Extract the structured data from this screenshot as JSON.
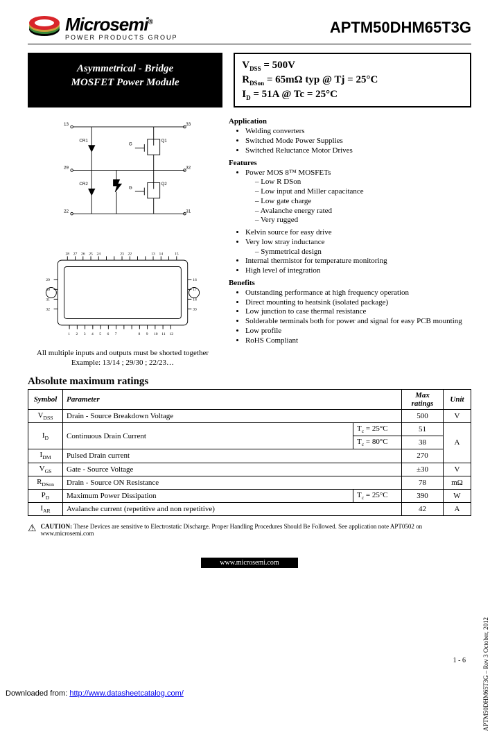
{
  "header": {
    "brand": "Microsemi",
    "tagline": "POWER PRODUCTS GROUP",
    "part_number": "APTM50DHM65T3G"
  },
  "title_badge": {
    "line1": "Asymmetrical - Bridge",
    "line2": "MOSFET Power Module"
  },
  "specs": {
    "line1_pre": "V",
    "line1_sub": "DSS",
    "line1_post": " = 500V",
    "line2_pre": "R",
    "line2_sub": "DSon",
    "line2_post": " = 65mΩ typ @ Tj = 25°C",
    "line3_pre": "I",
    "line3_sub": "D",
    "line3_post": " = 51A @ Tc = 25°C"
  },
  "diagram_note": {
    "line1": "All multiple inputs and outputs must be shorted together",
    "line2": "Example: 13/14 ; 29/30 ; 22/23…"
  },
  "application": {
    "title": "Application",
    "items": [
      "Welding converters",
      "Switched Mode Power Supplies",
      "Switched Reluctance Motor Drives"
    ]
  },
  "features": {
    "title": "Features",
    "lead": "Power MOS 8™ MOSFETs",
    "sub": [
      "Low R DSon",
      "Low input and Miller capacitance",
      "Low gate charge",
      "Avalanche energy rated",
      "Very rugged"
    ],
    "rest": [
      "Kelvin source for easy drive",
      "Very low stray inductance"
    ],
    "rest_sub": [
      "Symmetrical design"
    ],
    "rest2": [
      "Internal thermistor for temperature monitoring",
      "High level of integration"
    ]
  },
  "benefits": {
    "title": "Benefits",
    "items": [
      "Outstanding performance at high frequency operation",
      "Direct mounting to heatsink (isolated package)",
      "Low junction to case thermal resistance",
      "Solderable terminals both for power and signal for easy PCB mounting",
      "Low profile",
      "RoHS Compliant"
    ]
  },
  "ratings": {
    "title": "Absolute maximum ratings",
    "headers": [
      "Symbol",
      "Parameter",
      "Max ratings",
      "Unit"
    ],
    "rows": [
      {
        "sym": "V_DSS",
        "param": "Drain - Source Breakdown Voltage",
        "cond": "",
        "val": "500",
        "unit": "V",
        "rowspan": 1,
        "colspan": 2
      },
      {
        "sym": "I_D",
        "param": "Continuous Drain Current",
        "cond": "Tc = 25°C",
        "val": "51",
        "unit": "A",
        "merge": "start"
      },
      {
        "sym": "",
        "param": "",
        "cond": "Tc = 80°C",
        "val": "38",
        "unit": "",
        "merge": "mid"
      },
      {
        "sym": "I_DM",
        "param": "Pulsed Drain current",
        "cond": "",
        "val": "270",
        "unit": "",
        "merge": "end"
      },
      {
        "sym": "V_GS",
        "param": "Gate - Source Voltage",
        "cond": "",
        "val": "±30",
        "unit": "V",
        "colspan": 2
      },
      {
        "sym": "R_DSon",
        "param": "Drain - Source ON Resistance",
        "cond": "",
        "val": "78",
        "unit": "mΩ",
        "colspan": 2
      },
      {
        "sym": "P_D",
        "param": "Maximum Power Dissipation",
        "cond": "Tc = 25°C",
        "val": "390",
        "unit": "W"
      },
      {
        "sym": "I_AR",
        "param": "Avalanche current (repetitive and non repetitive)",
        "cond": "",
        "val": "42",
        "unit": "A",
        "colspan": 2
      }
    ]
  },
  "caution": {
    "label": "CAUTION:",
    "text": "These Devices are sensitive to Electrostatic Discharge. Proper Handling Procedures Should Be Followed. See application note APT0502 on www.microsemi.com"
  },
  "footer": {
    "url": "www.microsemi.com",
    "page": "1 - 6",
    "side": "APTM50DHM65T3G – Rev 3   October, 2012"
  },
  "download": {
    "prefix": "Downloaded from: ",
    "url": "http://www.datasheetcatalog.com/"
  },
  "colors": {
    "logo_red": "#d9252a",
    "logo_gold": "#c9a13b",
    "logo_green": "#3a8a3a"
  }
}
